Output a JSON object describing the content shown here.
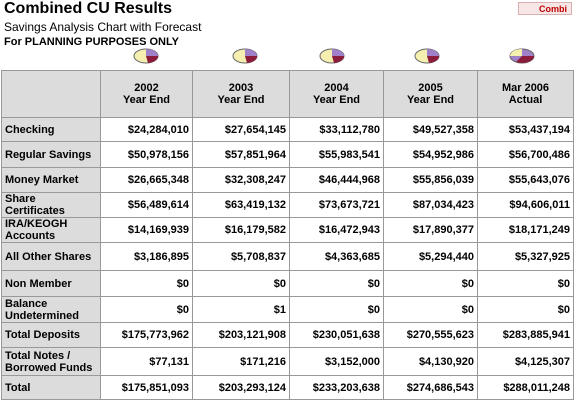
{
  "header": {
    "title": "Combined CU Results",
    "subtitle": "Savings Analysis Chart with Forecast",
    "note": "For PLANNING PURPOSES ONLY",
    "button": "Combi"
  },
  "table": {
    "columns": [
      [
        "2002",
        "Year End"
      ],
      [
        "2003",
        "Year End"
      ],
      [
        "2004",
        "Year End"
      ],
      [
        "2005",
        "Year End"
      ],
      [
        "Mar 2006",
        "Actual"
      ]
    ],
    "rows": [
      {
        "label": "Checking",
        "values": [
          "$24,284,010",
          "$27,654,145",
          "$33,112,780",
          "$49,527,358",
          "$53,437,194"
        ]
      },
      {
        "label": "Regular Savings",
        "values": [
          "$50,978,156",
          "$57,851,964",
          "$55,983,541",
          "$54,952,986",
          "$56,700,486"
        ]
      },
      {
        "label": "Money Market",
        "values": [
          "$26,665,348",
          "$32,308,247",
          "$46,444,968",
          "$55,856,039",
          "$55,643,076"
        ]
      },
      {
        "label": "Share Certificates",
        "values": [
          "$56,489,614",
          "$63,419,132",
          "$73,673,721",
          "$87,034,423",
          "$94,606,011"
        ]
      },
      {
        "label": "IRA/KEOGH Accounts",
        "values": [
          "$14,169,939",
          "$16,179,582",
          "$16,472,943",
          "$17,890,377",
          "$18,171,249"
        ]
      },
      {
        "label": "All Other Shares",
        "values": [
          "$3,186,895",
          "$5,708,837",
          "$4,363,685",
          "$5,294,440",
          "$5,327,925"
        ]
      },
      {
        "label": "Non Member",
        "values": [
          "$0",
          "$0",
          "$0",
          "$0",
          "$0"
        ]
      },
      {
        "label": "Balance Undetermined",
        "values": [
          "$0",
          "$1",
          "$0",
          "$0",
          "$0"
        ]
      },
      {
        "label": "Total Deposits",
        "values": [
          "$175,773,962",
          "$203,121,908",
          "$230,051,638",
          "$270,555,623",
          "$283,885,941"
        ]
      },
      {
        "label": "Total Notes / Borrowed Funds",
        "values": [
          "$77,131",
          "$171,216",
          "$3,152,000",
          "$4,130,920",
          "$4,125,307"
        ]
      },
      {
        "label": "Total",
        "values": [
          "$175,851,093",
          "$203,293,124",
          "$233,203,638",
          "$274,686,543",
          "$288,011,248"
        ]
      }
    ]
  }
}
